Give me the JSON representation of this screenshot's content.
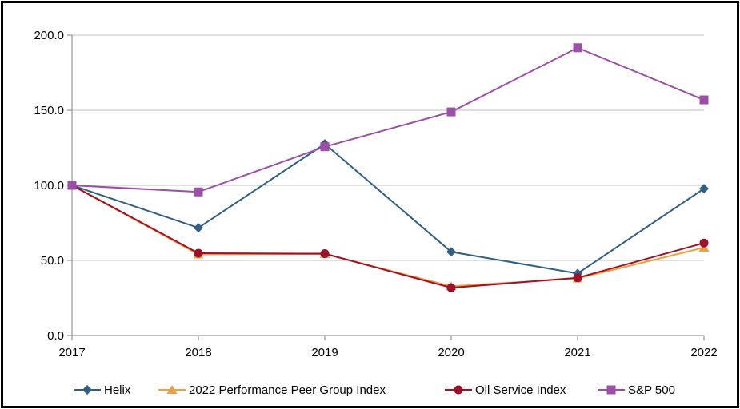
{
  "chart_data": {
    "type": "line",
    "title": "",
    "xlabel": "",
    "ylabel": "",
    "categories": [
      "2017",
      "2018",
      "2019",
      "2020",
      "2021",
      "2022"
    ],
    "ylim": [
      0,
      200
    ],
    "yticks": [
      "0.0",
      "50.0",
      "100.0",
      "150.0",
      "200.0"
    ],
    "grid": true,
    "legend_position": "bottom",
    "series": [
      {
        "name": "Helix",
        "color": "#2F5F86",
        "marker": "diamond",
        "values": [
          100.0,
          71.7,
          127.6,
          55.7,
          41.3,
          97.8
        ]
      },
      {
        "name": "2022 Performance Peer Group Index",
        "color": "#F0A040",
        "marker": "triangle",
        "values": [
          100.0,
          54.0,
          54.3,
          32.8,
          38.0,
          58.5
        ]
      },
      {
        "name": "Oil Service Index",
        "color": "#A0102A",
        "marker": "circle",
        "values": [
          100.0,
          54.8,
          54.5,
          31.8,
          38.4,
          61.6
        ]
      },
      {
        "name": "S&P 500",
        "color": "#9B4FA6",
        "marker": "square",
        "values": [
          100.0,
          95.6,
          125.7,
          148.9,
          191.6,
          156.9
        ]
      }
    ]
  }
}
